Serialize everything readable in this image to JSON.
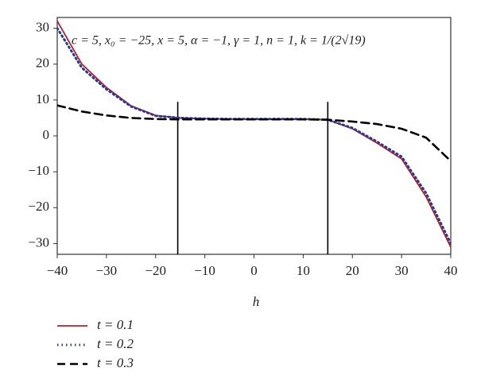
{
  "chart_data": {
    "type": "line",
    "annotation": "c = 5, x₀ = −25, x = 5, α = −1, γ = 1, n = 1, k = 1/(2√19)",
    "x_label": "h",
    "x": [
      -40,
      -35,
      -30,
      -25,
      -20,
      -15,
      -10,
      -5,
      0,
      5,
      10,
      15,
      20,
      25,
      30,
      35,
      40
    ],
    "series": [
      {
        "name": "t = 0.1",
        "color": "#b0232a",
        "style": "solid",
        "values": [
          32,
          20,
          13.5,
          8.4,
          5.7,
          5,
          4.8,
          4.7,
          4.7,
          4.7,
          4.7,
          4.5,
          2,
          -2,
          -6.4,
          -17,
          -31
        ]
      },
      {
        "name": "t = 0.2",
        "color": "#2b3a8f",
        "style": "dotted",
        "values": [
          30,
          19,
          13,
          8.2,
          5.6,
          5,
          4.8,
          4.7,
          4.7,
          4.7,
          4.7,
          4.5,
          2.2,
          -1.6,
          -5.8,
          -16,
          -30
        ]
      },
      {
        "name": "t = 0.3",
        "color": "#000000",
        "style": "dashed",
        "values": [
          8.5,
          6.8,
          5.7,
          5,
          4.7,
          4.6,
          4.6,
          4.6,
          4.6,
          4.6,
          4.6,
          4.5,
          4.0,
          3.3,
          2,
          -0.5,
          -7
        ]
      }
    ],
    "vlines": [
      -15.5,
      15
    ],
    "vline_top": 9.5,
    "xlim": [
      -40,
      40
    ],
    "ylim": [
      -33,
      33
    ],
    "xticks": [
      {
        "value": -40,
        "label": "−40"
      },
      {
        "value": -30,
        "label": "−30"
      },
      {
        "value": -20,
        "label": "−20"
      },
      {
        "value": -10,
        "label": "−10"
      },
      0,
      10,
      20,
      30,
      40
    ],
    "yticks": [
      {
        "value": -30,
        "label": "−30"
      },
      {
        "value": -20,
        "label": "−20"
      },
      {
        "value": -10,
        "label": "−10"
      },
      0,
      10,
      20,
      30
    ]
  }
}
